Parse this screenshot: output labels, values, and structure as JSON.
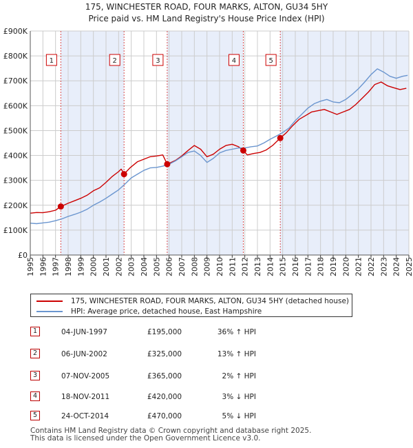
{
  "title_line1": "175, WINCHESTER ROAD, FOUR MARKS, ALTON, GU34 5HY",
  "title_line2": "Price paid vs. HM Land Registry's House Price Index (HPI)",
  "colors": {
    "property": "#cc0000",
    "hpi": "#6a95cf",
    "shade": "#e8eefa",
    "grid": "#cccccc",
    "marker_border": "#cc0000"
  },
  "chart_data": {
    "type": "line",
    "title": "175, WINCHESTER ROAD, FOUR MARKS, ALTON, GU34 5HY — Price paid vs. HM Land Registry's House Price Index (HPI)",
    "xlim": [
      1995,
      2025
    ],
    "ylim": [
      0,
      900000
    ],
    "yticks": [
      0,
      100000,
      200000,
      300000,
      400000,
      500000,
      600000,
      700000,
      800000,
      900000
    ],
    "ytick_labels": [
      "£0",
      "£100K",
      "£200K",
      "£300K",
      "£400K",
      "£500K",
      "£600K",
      "£700K",
      "£800K",
      "£900K"
    ],
    "xticks": [
      1995,
      1996,
      1997,
      1998,
      1999,
      2000,
      2001,
      2002,
      2003,
      2004,
      2005,
      2006,
      2007,
      2008,
      2009,
      2010,
      2011,
      2012,
      2013,
      2014,
      2015,
      2016,
      2017,
      2018,
      2019,
      2020,
      2021,
      2022,
      2023,
      2024,
      2025
    ],
    "xtick_labels": [
      "1995",
      "1996",
      "1997",
      "1998",
      "1999",
      "2000",
      "2001",
      "2002",
      "2003",
      "2004",
      "2005",
      "2006",
      "2007",
      "2008",
      "2009",
      "2010",
      "2011",
      "2012",
      "2013",
      "2014",
      "2015",
      "2016",
      "2017",
      "2018",
      "2019",
      "2020",
      "2021",
      "2022",
      "2023",
      "2024",
      "2025"
    ],
    "shaded_spans": [
      [
        1997.42,
        2002.43
      ],
      [
        2005.85,
        2011.88
      ],
      [
        2014.81,
        2025.0
      ]
    ],
    "series": [
      {
        "name": "175, WINCHESTER ROAD, FOUR MARKS, ALTON, GU34 5HY (detached house)",
        "color": "#cc0000",
        "points": [
          [
            1995.0,
            168000
          ],
          [
            1995.5,
            171000
          ],
          [
            1996.0,
            170000
          ],
          [
            1996.5,
            174000
          ],
          [
            1997.0,
            180000
          ],
          [
            1997.42,
            195000
          ],
          [
            1998.0,
            208000
          ],
          [
            1998.5,
            218000
          ],
          [
            1999.0,
            228000
          ],
          [
            1999.5,
            240000
          ],
          [
            2000.0,
            258000
          ],
          [
            2000.5,
            270000
          ],
          [
            2001.0,
            292000
          ],
          [
            2001.5,
            316000
          ],
          [
            2002.0,
            335000
          ],
          [
            2002.2,
            345000
          ],
          [
            2002.4,
            330000
          ],
          [
            2002.43,
            325000
          ],
          [
            2002.9,
            350000
          ],
          [
            2003.5,
            375000
          ],
          [
            2004.0,
            385000
          ],
          [
            2004.5,
            395000
          ],
          [
            2005.0,
            398000
          ],
          [
            2005.5,
            402000
          ],
          [
            2005.85,
            365000
          ],
          [
            2006.5,
            380000
          ],
          [
            2007.0,
            398000
          ],
          [
            2007.5,
            420000
          ],
          [
            2008.0,
            440000
          ],
          [
            2008.5,
            425000
          ],
          [
            2009.0,
            395000
          ],
          [
            2009.5,
            405000
          ],
          [
            2010.0,
            425000
          ],
          [
            2010.5,
            440000
          ],
          [
            2011.0,
            445000
          ],
          [
            2011.5,
            435000
          ],
          [
            2011.88,
            420000
          ],
          [
            2012.2,
            402000
          ],
          [
            2012.7,
            408000
          ],
          [
            2013.2,
            412000
          ],
          [
            2013.7,
            422000
          ],
          [
            2014.2,
            440000
          ],
          [
            2014.81,
            470000
          ],
          [
            2015.3,
            492000
          ],
          [
            2015.8,
            520000
          ],
          [
            2016.3,
            545000
          ],
          [
            2016.8,
            560000
          ],
          [
            2017.3,
            575000
          ],
          [
            2017.8,
            580000
          ],
          [
            2018.3,
            585000
          ],
          [
            2018.8,
            575000
          ],
          [
            2019.3,
            565000
          ],
          [
            2019.8,
            575000
          ],
          [
            2020.3,
            585000
          ],
          [
            2020.8,
            605000
          ],
          [
            2021.3,
            630000
          ],
          [
            2021.8,
            655000
          ],
          [
            2022.3,
            685000
          ],
          [
            2022.8,
            695000
          ],
          [
            2023.3,
            680000
          ],
          [
            2023.8,
            672000
          ],
          [
            2024.3,
            665000
          ],
          [
            2024.8,
            670000
          ]
        ]
      },
      {
        "name": "HPI: Average price, detached house, East Hampshire",
        "color": "#6a95cf",
        "points": [
          [
            1995.0,
            128000
          ],
          [
            1995.5,
            126000
          ],
          [
            1996.0,
            129000
          ],
          [
            1996.5,
            132000
          ],
          [
            1997.0,
            138000
          ],
          [
            1997.5,
            145000
          ],
          [
            1998.0,
            155000
          ],
          [
            1998.5,
            163000
          ],
          [
            1999.0,
            172000
          ],
          [
            1999.5,
            184000
          ],
          [
            2000.0,
            200000
          ],
          [
            2000.5,
            213000
          ],
          [
            2001.0,
            228000
          ],
          [
            2001.5,
            245000
          ],
          [
            2002.0,
            262000
          ],
          [
            2002.5,
            285000
          ],
          [
            2003.0,
            310000
          ],
          [
            2003.5,
            325000
          ],
          [
            2004.0,
            340000
          ],
          [
            2004.5,
            350000
          ],
          [
            2005.0,
            352000
          ],
          [
            2005.5,
            357000
          ],
          [
            2006.0,
            365000
          ],
          [
            2006.5,
            378000
          ],
          [
            2007.0,
            395000
          ],
          [
            2007.5,
            412000
          ],
          [
            2008.0,
            418000
          ],
          [
            2008.5,
            400000
          ],
          [
            2009.0,
            372000
          ],
          [
            2009.5,
            388000
          ],
          [
            2010.0,
            410000
          ],
          [
            2010.5,
            420000
          ],
          [
            2011.0,
            425000
          ],
          [
            2011.5,
            430000
          ],
          [
            2012.0,
            430000
          ],
          [
            2012.5,
            435000
          ],
          [
            2013.0,
            438000
          ],
          [
            2013.5,
            450000
          ],
          [
            2014.0,
            465000
          ],
          [
            2014.5,
            478000
          ],
          [
            2015.0,
            492000
          ],
          [
            2015.5,
            510000
          ],
          [
            2016.0,
            540000
          ],
          [
            2016.5,
            565000
          ],
          [
            2017.0,
            590000
          ],
          [
            2017.5,
            608000
          ],
          [
            2018.0,
            618000
          ],
          [
            2018.5,
            625000
          ],
          [
            2019.0,
            615000
          ],
          [
            2019.5,
            612000
          ],
          [
            2020.0,
            625000
          ],
          [
            2020.5,
            645000
          ],
          [
            2021.0,
            668000
          ],
          [
            2021.5,
            695000
          ],
          [
            2022.0,
            725000
          ],
          [
            2022.5,
            748000
          ],
          [
            2023.0,
            735000
          ],
          [
            2023.5,
            718000
          ],
          [
            2024.0,
            710000
          ],
          [
            2024.5,
            718000
          ],
          [
            2024.9,
            722000
          ]
        ]
      }
    ],
    "sales": [
      {
        "num": "1",
        "x": 1997.42,
        "y": 195000
      },
      {
        "num": "2",
        "x": 2002.43,
        "y": 325000
      },
      {
        "num": "3",
        "x": 2005.85,
        "y": 365000
      },
      {
        "num": "4",
        "x": 2011.88,
        "y": 420000
      },
      {
        "num": "5",
        "x": 2014.81,
        "y": 470000
      }
    ]
  },
  "legend": {
    "property": "175, WINCHESTER ROAD, FOUR MARKS, ALTON, GU34 5HY (detached house)",
    "hpi": "HPI: Average price, detached house, East Hampshire"
  },
  "transactions": [
    {
      "num": "1",
      "date": "04-JUN-1997",
      "price": "£195,000",
      "hpi": "36% ↑ HPI"
    },
    {
      "num": "2",
      "date": "06-JUN-2002",
      "price": "£325,000",
      "hpi": "13% ↑ HPI"
    },
    {
      "num": "3",
      "date": "07-NOV-2005",
      "price": "£365,000",
      "hpi": "2% ↑ HPI"
    },
    {
      "num": "4",
      "date": "18-NOV-2011",
      "price": "£420,000",
      "hpi": "3% ↓ HPI"
    },
    {
      "num": "5",
      "date": "24-OCT-2014",
      "price": "£470,000",
      "hpi": "5% ↓ HPI"
    }
  ],
  "footer_line1": "Contains HM Land Registry data © Crown copyright and database right 2025.",
  "footer_line2": "This data is licensed under the Open Government Licence v3.0."
}
